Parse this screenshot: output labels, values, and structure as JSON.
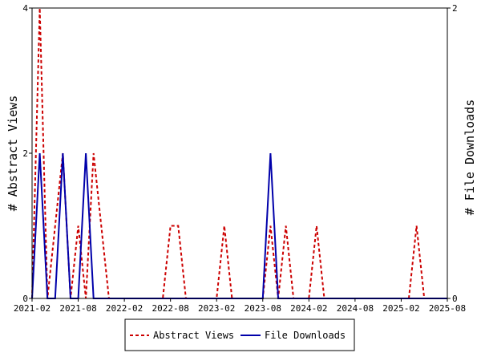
{
  "chart_data": {
    "type": "line",
    "xlabel": "",
    "ylabel_left": "# Abstract Views",
    "ylabel_right": "# File Downloads",
    "x_ticks": [
      "2021-02",
      "2021-08",
      "2022-02",
      "2022-08",
      "2023-02",
      "2023-08",
      "2024-02",
      "2024-08",
      "2025-02",
      "2025-08"
    ],
    "y_left_ticks": [
      "0",
      "2",
      "4"
    ],
    "y_right_ticks": [
      "0",
      "2"
    ],
    "y_left_range": [
      0,
      4
    ],
    "y_right_range": [
      0,
      2
    ],
    "x_range_months": [
      "2021-02",
      "2025-08"
    ],
    "grid": false,
    "legend_position": "bottom",
    "legend": {
      "abstract_label": "Abstract Views",
      "downloads_label": "File Downloads"
    },
    "series": [
      {
        "name": "Abstract Views",
        "axis": "left",
        "color": "#cc0000",
        "dash": true,
        "x": [
          "2021-02",
          "2021-03",
          "2021-04",
          "2021-05",
          "2021-06",
          "2021-07",
          "2021-08",
          "2021-09",
          "2021-10",
          "2021-11",
          "2021-12",
          "2022-01",
          "2022-02",
          "2022-03",
          "2022-04",
          "2022-05",
          "2022-06",
          "2022-07",
          "2022-08",
          "2022-09",
          "2022-10",
          "2022-11",
          "2022-12",
          "2023-01",
          "2023-02",
          "2023-03",
          "2023-04",
          "2023-05",
          "2023-06",
          "2023-07",
          "2023-08",
          "2023-09",
          "2023-10",
          "2023-11",
          "2023-12",
          "2024-01",
          "2024-02",
          "2024-03",
          "2024-04",
          "2024-05",
          "2024-06",
          "2024-07",
          "2024-08",
          "2024-09",
          "2024-10",
          "2024-11",
          "2024-12",
          "2025-01",
          "2025-02",
          "2025-03",
          "2025-04",
          "2025-05",
          "2025-06",
          "2025-07",
          "2025-08"
        ],
        "y": [
          0,
          4,
          0,
          1,
          2,
          0,
          1,
          0,
          2,
          1,
          0,
          0,
          0,
          0,
          0,
          0,
          0,
          0,
          1,
          1,
          0,
          0,
          0,
          0,
          0,
          1,
          0,
          0,
          0,
          0,
          0,
          1,
          0,
          1,
          0,
          0,
          0,
          1,
          0,
          0,
          0,
          0,
          0,
          0,
          0,
          0,
          0,
          0,
          0,
          0,
          1,
          0,
          0,
          0,
          0
        ]
      },
      {
        "name": "File Downloads",
        "axis": "right",
        "color": "#0000aa",
        "dash": false,
        "x": [
          "2021-02",
          "2021-03",
          "2021-04",
          "2021-05",
          "2021-06",
          "2021-07",
          "2021-08",
          "2021-09",
          "2021-10",
          "2021-11",
          "2021-12",
          "2022-01",
          "2022-02",
          "2022-03",
          "2022-04",
          "2022-05",
          "2022-06",
          "2022-07",
          "2022-08",
          "2022-09",
          "2022-10",
          "2022-11",
          "2022-12",
          "2023-01",
          "2023-02",
          "2023-03",
          "2023-04",
          "2023-05",
          "2023-06",
          "2023-07",
          "2023-08",
          "2023-09",
          "2023-10",
          "2023-11",
          "2023-12",
          "2024-01",
          "2024-02",
          "2024-03",
          "2024-04",
          "2024-05",
          "2024-06",
          "2024-07",
          "2024-08",
          "2024-09",
          "2024-10",
          "2024-11",
          "2024-12",
          "2025-01",
          "2025-02",
          "2025-03",
          "2025-04",
          "2025-05",
          "2025-06",
          "2025-07",
          "2025-08"
        ],
        "y": [
          0,
          1,
          0,
          0,
          1,
          0,
          0,
          1,
          0,
          0,
          0,
          0,
          0,
          0,
          0,
          0,
          0,
          0,
          0,
          0,
          0,
          0,
          0,
          0,
          0,
          0,
          0,
          0,
          0,
          0,
          0,
          1,
          0,
          0,
          0,
          0,
          0,
          0,
          0,
          0,
          0,
          0,
          0,
          0,
          0,
          0,
          0,
          0,
          0,
          0,
          0,
          0,
          0,
          0,
          0
        ]
      }
    ]
  }
}
